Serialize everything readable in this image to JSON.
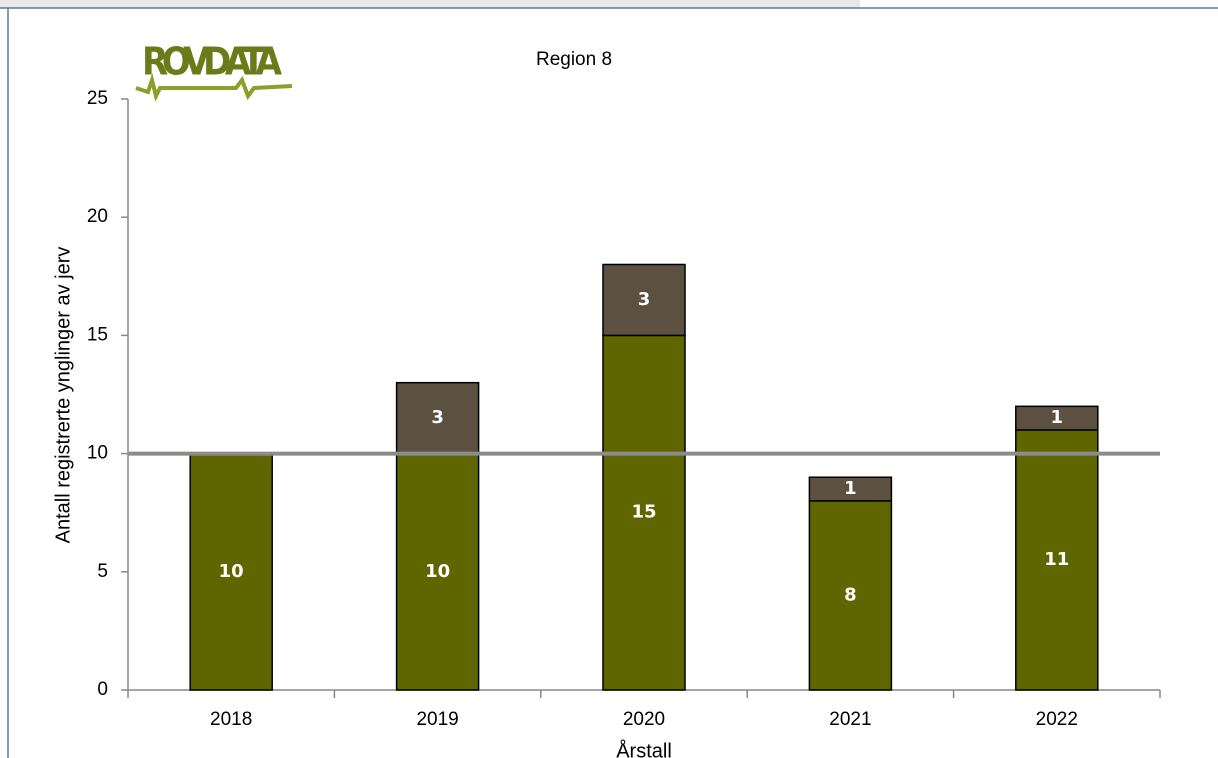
{
  "chart_data": {
    "type": "stacked_bar",
    "title": "Region 8",
    "logo": "ROVDATA",
    "ylabel": "Antall registrerte ynglinger av jerv",
    "xlabel": "Årstall",
    "categories": [
      "2018",
      "2019",
      "2020",
      "2021",
      "2022"
    ],
    "series": [
      {
        "color": "#5f6600",
        "values": [
          10,
          10,
          15,
          8,
          11
        ]
      },
      {
        "color": "#5c5040",
        "values": [
          null,
          3,
          3,
          1,
          1
        ]
      }
    ],
    "reference_line": 10,
    "reference_color": "#8c8c8c",
    "ylim": [
      0,
      25
    ],
    "yticks": [
      0,
      5,
      10,
      15,
      20,
      25
    ]
  }
}
